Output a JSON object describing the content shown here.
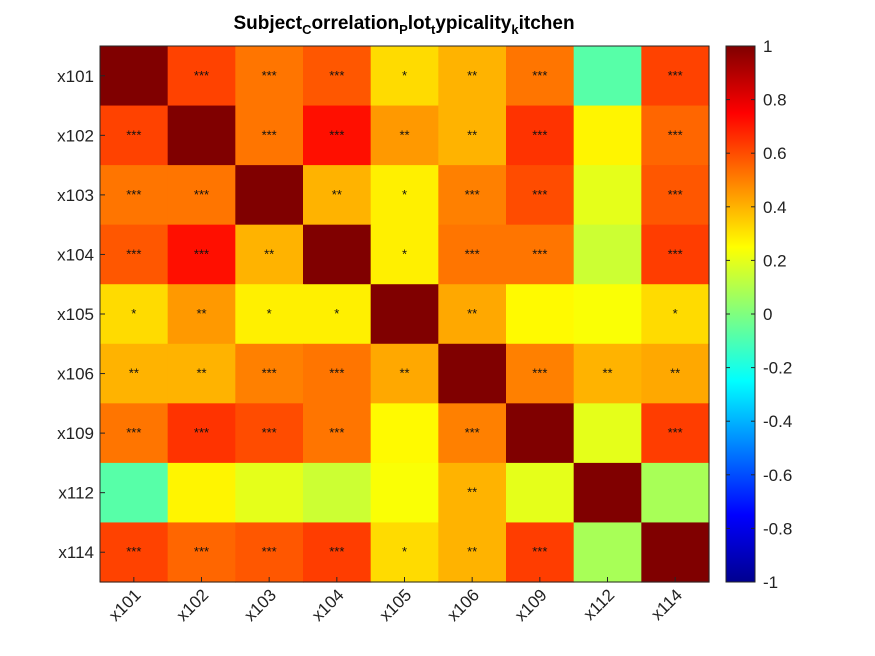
{
  "chart_data": {
    "type": "heatmap",
    "title": {
      "parts": [
        {
          "text": "Subject",
          "sub": false
        },
        {
          "text": "C",
          "sub": true
        },
        {
          "text": "orrelation",
          "sub": false
        },
        {
          "text": "P",
          "sub": true
        },
        {
          "text": "lot",
          "sub": false
        },
        {
          "text": "t",
          "sub": true
        },
        {
          "text": "ypicality",
          "sub": false
        },
        {
          "text": "k",
          "sub": true
        },
        {
          "text": "itchen",
          "sub": false
        }
      ]
    },
    "colormap": "jet",
    "clim": [
      -1,
      1
    ],
    "row_labels": [
      "x101",
      "x102",
      "x103",
      "x104",
      "x105",
      "x106",
      "x109",
      "x112",
      "x114"
    ],
    "col_labels": [
      "x101",
      "x102",
      "x103",
      "x104",
      "x105",
      "x106",
      "x109",
      "x112",
      "x114"
    ],
    "values": [
      [
        1.0,
        0.62,
        0.52,
        0.58,
        0.32,
        0.4,
        0.52,
        -0.08,
        0.62
      ],
      [
        0.62,
        1.0,
        0.52,
        0.72,
        0.45,
        0.4,
        0.65,
        0.27,
        0.55
      ],
      [
        0.52,
        0.52,
        1.0,
        0.4,
        0.28,
        0.5,
        0.6,
        0.2,
        0.58
      ],
      [
        0.58,
        0.72,
        0.4,
        1.0,
        0.28,
        0.52,
        0.52,
        0.15,
        0.63
      ],
      [
        0.32,
        0.45,
        0.28,
        0.28,
        1.0,
        0.42,
        0.26,
        0.24,
        0.32
      ],
      [
        0.4,
        0.4,
        0.5,
        0.52,
        0.42,
        1.0,
        0.5,
        0.4,
        0.42
      ],
      [
        0.52,
        0.65,
        0.6,
        0.52,
        0.26,
        0.5,
        1.0,
        0.2,
        0.63
      ],
      [
        -0.08,
        0.27,
        0.2,
        0.15,
        0.24,
        0.4,
        0.2,
        1.0,
        0.08
      ],
      [
        0.62,
        0.55,
        0.58,
        0.63,
        0.32,
        0.4,
        0.63,
        0.08,
        1.0
      ]
    ],
    "stars": [
      [
        "",
        "***",
        "***",
        "***",
        "*",
        "**",
        "***",
        "",
        "***"
      ],
      [
        "***",
        "",
        "***",
        "***",
        "**",
        "**",
        "***",
        "",
        "***"
      ],
      [
        "***",
        "***",
        "",
        "**",
        "*",
        "***",
        "***",
        "",
        "***"
      ],
      [
        "***",
        "***",
        "**",
        "",
        "*",
        "***",
        "***",
        "",
        "***"
      ],
      [
        "*",
        "**",
        "*",
        "*",
        "",
        "**",
        "",
        "",
        "*"
      ],
      [
        "**",
        "**",
        "***",
        "***",
        "**",
        "",
        "***",
        "**",
        "**"
      ],
      [
        "***",
        "***",
        "***",
        "***",
        "",
        "***",
        "",
        "",
        "***"
      ],
      [
        "",
        "",
        "",
        "",
        "",
        "**",
        "",
        "",
        ""
      ],
      [
        "***",
        "***",
        "***",
        "***",
        "*",
        "**",
        "***",
        "",
        ""
      ]
    ],
    "colorbar": {
      "ticks": [
        1,
        0.8,
        0.6,
        0.4,
        0.2,
        0,
        -0.2,
        -0.4,
        -0.6,
        -0.8,
        -1
      ],
      "tick_labels": [
        "1",
        "0.8",
        "0.6",
        "0.4",
        "0.2",
        "0",
        "-0.2",
        "-0.4",
        "-0.6",
        "-0.8",
        "-1"
      ]
    }
  }
}
